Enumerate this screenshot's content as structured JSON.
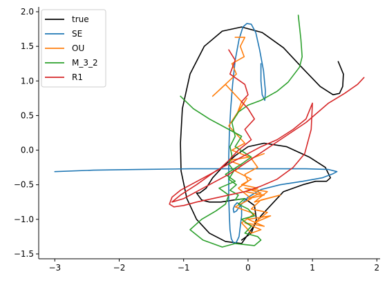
{
  "chart_data": {
    "type": "line",
    "xlim": [
      -3.25,
      2.05
    ],
    "ylim": [
      -1.57,
      2.07
    ],
    "xticks": [
      -3,
      -2,
      -1,
      0,
      1,
      2
    ],
    "yticks": [
      -1.5,
      -1.0,
      -0.5,
      0.0,
      0.5,
      1.0,
      1.5,
      2.0
    ],
    "xtick_labels": [
      "−3",
      "−2",
      "−1",
      "0",
      "1",
      "2"
    ],
    "ytick_labels": [
      "−1.5",
      "−1.0",
      "−0.5",
      "0.0",
      "0.5",
      "1.0",
      "1.5",
      "2.0"
    ],
    "grid": false,
    "legend": "top-left",
    "series": [
      {
        "name": "true",
        "color": "#000000",
        "width": 1.6,
        "x": [
          1.4,
          1.48,
          1.47,
          1.42,
          1.32,
          1.12,
          0.85,
          0.55,
          0.22,
          -0.1,
          -0.4,
          -0.68,
          -0.9,
          -1.02,
          -1.05,
          -1.04,
          -0.95,
          -0.8,
          -0.6,
          -0.35,
          -0.1,
          0.2,
          0.55,
          0.85,
          1.05,
          1.15,
          1.22,
          1.28,
          1.2,
          0.95,
          0.6,
          0.25,
          0.0,
          -0.2,
          -0.4,
          -0.55,
          -0.65,
          -0.75,
          -0.8,
          -0.72,
          -0.6,
          -0.42,
          -0.22,
          -0.05,
          0.1,
          0.13,
          0.05,
          -0.1
        ],
        "y": [
          1.28,
          1.1,
          0.92,
          0.82,
          0.8,
          0.92,
          1.18,
          1.48,
          1.7,
          1.78,
          1.72,
          1.5,
          1.1,
          0.6,
          0.1,
          -0.3,
          -0.7,
          -1.0,
          -1.2,
          -1.32,
          -1.35,
          -0.95,
          -0.6,
          -0.5,
          -0.45,
          -0.45,
          -0.45,
          -0.4,
          -0.25,
          -0.1,
          0.05,
          0.1,
          0.05,
          -0.08,
          -0.25,
          -0.4,
          -0.55,
          -0.62,
          -0.62,
          -0.72,
          -0.75,
          -0.75,
          -0.72,
          -0.7,
          -0.8,
          -1.0,
          -1.2,
          -1.3
        ]
      },
      {
        "name": "SE",
        "color": "#1f77b4",
        "width": 1.6,
        "x": [
          0.2,
          0.2,
          0.22,
          0.26,
          0.27,
          0.24,
          0.18,
          0.12,
          0.05,
          -0.02,
          -0.08,
          -0.14,
          -0.2,
          -0.24,
          -0.27,
          -0.29,
          -0.3,
          -0.3,
          -0.3,
          -0.29,
          -0.28,
          -0.26,
          -0.22,
          -0.18,
          -0.14,
          -0.12,
          -0.1,
          -0.1,
          -0.12,
          -0.17,
          -0.21,
          -0.23,
          -0.22,
          -0.18,
          -0.12,
          0.0,
          0.2,
          0.5,
          0.85,
          1.15,
          1.32,
          1.38,
          1.25,
          0.9,
          0.4,
          -0.2,
          -0.9,
          -1.7,
          -2.4,
          -3.0
        ],
        "y": [
          1.25,
          1.0,
          0.8,
          0.72,
          0.85,
          1.15,
          1.45,
          1.7,
          1.82,
          1.83,
          1.78,
          1.6,
          1.3,
          0.95,
          0.6,
          0.25,
          -0.1,
          -0.4,
          -0.7,
          -0.95,
          -1.15,
          -1.28,
          -1.35,
          -1.33,
          -1.25,
          -1.1,
          -0.95,
          -0.85,
          -0.78,
          -0.76,
          -0.8,
          -0.85,
          -0.9,
          -0.88,
          -0.8,
          -0.68,
          -0.57,
          -0.5,
          -0.45,
          -0.4,
          -0.34,
          -0.31,
          -0.28,
          -0.27,
          -0.27,
          -0.27,
          -0.27,
          -0.28,
          -0.29,
          -0.31
        ]
      },
      {
        "name": "OU",
        "color": "#ff7f0e",
        "width": 1.6,
        "x": [
          -0.2,
          -0.05,
          -0.12,
          -0.06,
          -0.25,
          -0.18,
          -0.55,
          -0.35,
          -0.1,
          -0.18,
          -0.02,
          -0.3,
          -0.05,
          -0.25,
          0.02,
          -0.3,
          -0.1,
          -0.2,
          0.05,
          -0.1,
          0.15,
          -0.05,
          0.25,
          0.0,
          0.2,
          -0.05,
          0.3,
          0.1,
          0.5,
          0.2,
          0.05,
          0.3,
          0.1,
          0.35,
          0.0,
          0.25,
          -0.05,
          0.2,
          0.05,
          -0.1,
          0.1,
          -0.2,
          0.05,
          -0.15,
          0.0,
          -0.05,
          0.15,
          0.05,
          0.25
        ],
        "y": [
          1.63,
          1.63,
          1.5,
          1.35,
          1.25,
          1.1,
          0.78,
          0.95,
          0.7,
          0.5,
          0.75,
          0.35,
          0.1,
          0.0,
          -0.1,
          -0.15,
          -0.22,
          -0.3,
          -0.42,
          -0.5,
          -0.55,
          -0.6,
          -0.65,
          -0.7,
          -0.62,
          -0.55,
          -0.6,
          -0.75,
          -0.65,
          -0.72,
          -0.85,
          -0.9,
          -1.05,
          -0.95,
          -1.0,
          -1.1,
          -1.05,
          -1.15,
          -1.2,
          -1.05,
          -0.92,
          -0.82,
          -0.7,
          -0.55,
          -0.45,
          -0.35,
          -0.25,
          -0.12,
          -0.05
        ]
      },
      {
        "name": "M_3_2",
        "color": "#2ca02c",
        "width": 1.6,
        "x": [
          0.78,
          0.82,
          0.84,
          0.8,
          0.62,
          0.45,
          0.2,
          0.0,
          -0.15,
          -0.25,
          -0.2,
          -0.28,
          -0.25,
          -0.3,
          -0.22,
          -0.3,
          -0.18,
          -0.28,
          -0.15,
          -0.2,
          -0.05,
          -0.15,
          0.0,
          0.1,
          -0.1,
          0.05,
          -0.05,
          0.15,
          0.2,
          0.1,
          -0.2,
          -0.4,
          -0.7,
          -0.9,
          -0.72,
          -0.5,
          -0.35,
          -0.3,
          -0.45,
          -0.2,
          -0.35,
          -0.1,
          0.05,
          -0.2,
          -0.1,
          -0.3,
          -0.6,
          -0.85,
          -1.05
        ],
        "y": [
          1.95,
          1.6,
          1.35,
          1.2,
          0.98,
          0.85,
          0.72,
          0.65,
          0.55,
          0.4,
          0.2,
          0.05,
          -0.08,
          -0.2,
          -0.3,
          -0.42,
          -0.5,
          -0.58,
          -0.65,
          -0.72,
          -0.7,
          -0.78,
          -0.85,
          -0.95,
          -1.0,
          -1.1,
          -1.2,
          -1.25,
          -1.3,
          -1.38,
          -1.35,
          -1.4,
          -1.3,
          -1.15,
          -1.0,
          -0.88,
          -0.78,
          -0.65,
          -0.55,
          -0.45,
          -0.35,
          -0.2,
          -0.1,
          0.05,
          0.2,
          0.3,
          0.45,
          0.6,
          0.78
        ]
      },
      {
        "name": "R1",
        "color": "#d62728",
        "width": 1.6,
        "x": [
          -0.3,
          -0.2,
          -0.28,
          -0.05,
          0.0,
          -0.1,
          0.0,
          0.1,
          -0.05,
          0.05,
          -0.15,
          -0.3,
          -0.45,
          -0.65,
          -0.85,
          -1.05,
          -1.18,
          -1.22,
          -1.15,
          -1.0,
          -0.8,
          -0.55,
          -0.3,
          -0.05,
          0.2,
          0.45,
          0.7,
          0.88,
          0.98,
          1.0,
          0.9,
          0.7,
          0.45,
          0.2,
          0.0,
          -0.2,
          -0.5,
          -0.8,
          -1.05,
          -1.18,
          -1.0,
          -0.7,
          -0.3,
          0.1,
          0.5,
          0.9,
          1.25,
          1.5,
          1.7,
          1.8
        ],
        "y": [
          1.45,
          1.3,
          1.1,
          0.95,
          0.8,
          0.7,
          0.6,
          0.45,
          0.3,
          0.15,
          0.0,
          -0.15,
          -0.28,
          -0.38,
          -0.48,
          -0.58,
          -0.68,
          -0.78,
          -0.82,
          -0.8,
          -0.75,
          -0.7,
          -0.65,
          -0.6,
          -0.52,
          -0.42,
          -0.25,
          -0.05,
          0.3,
          0.68,
          0.45,
          0.3,
          0.15,
          0.05,
          -0.05,
          -0.15,
          -0.3,
          -0.5,
          -0.65,
          -0.75,
          -0.7,
          -0.55,
          -0.35,
          -0.1,
          0.15,
          0.4,
          0.68,
          0.82,
          0.95,
          1.05
        ]
      }
    ]
  }
}
